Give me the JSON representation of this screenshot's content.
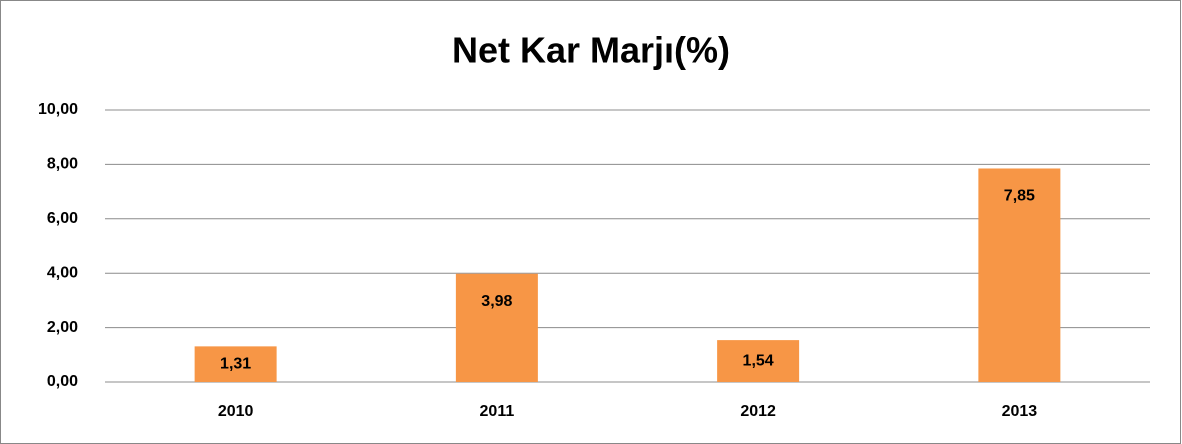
{
  "chart_data": {
    "type": "bar",
    "title": "Net Kar Marjı(%)",
    "categories": [
      "2010",
      "2011",
      "2012",
      "2013"
    ],
    "values": [
      1.31,
      3.98,
      1.54,
      7.85
    ],
    "value_labels": [
      "1,31",
      "3,98",
      "1,54",
      "7,85"
    ],
    "color": "#f79646",
    "ylim": [
      0,
      10
    ],
    "yticks": [
      {
        "value": 0,
        "label": "0,00"
      },
      {
        "value": 2,
        "label": "2,00"
      },
      {
        "value": 4,
        "label": "4,00"
      },
      {
        "value": 6,
        "label": "6,00"
      },
      {
        "value": 8,
        "label": "8,00"
      },
      {
        "value": 10,
        "label": "10,00"
      }
    ],
    "grid": true
  }
}
